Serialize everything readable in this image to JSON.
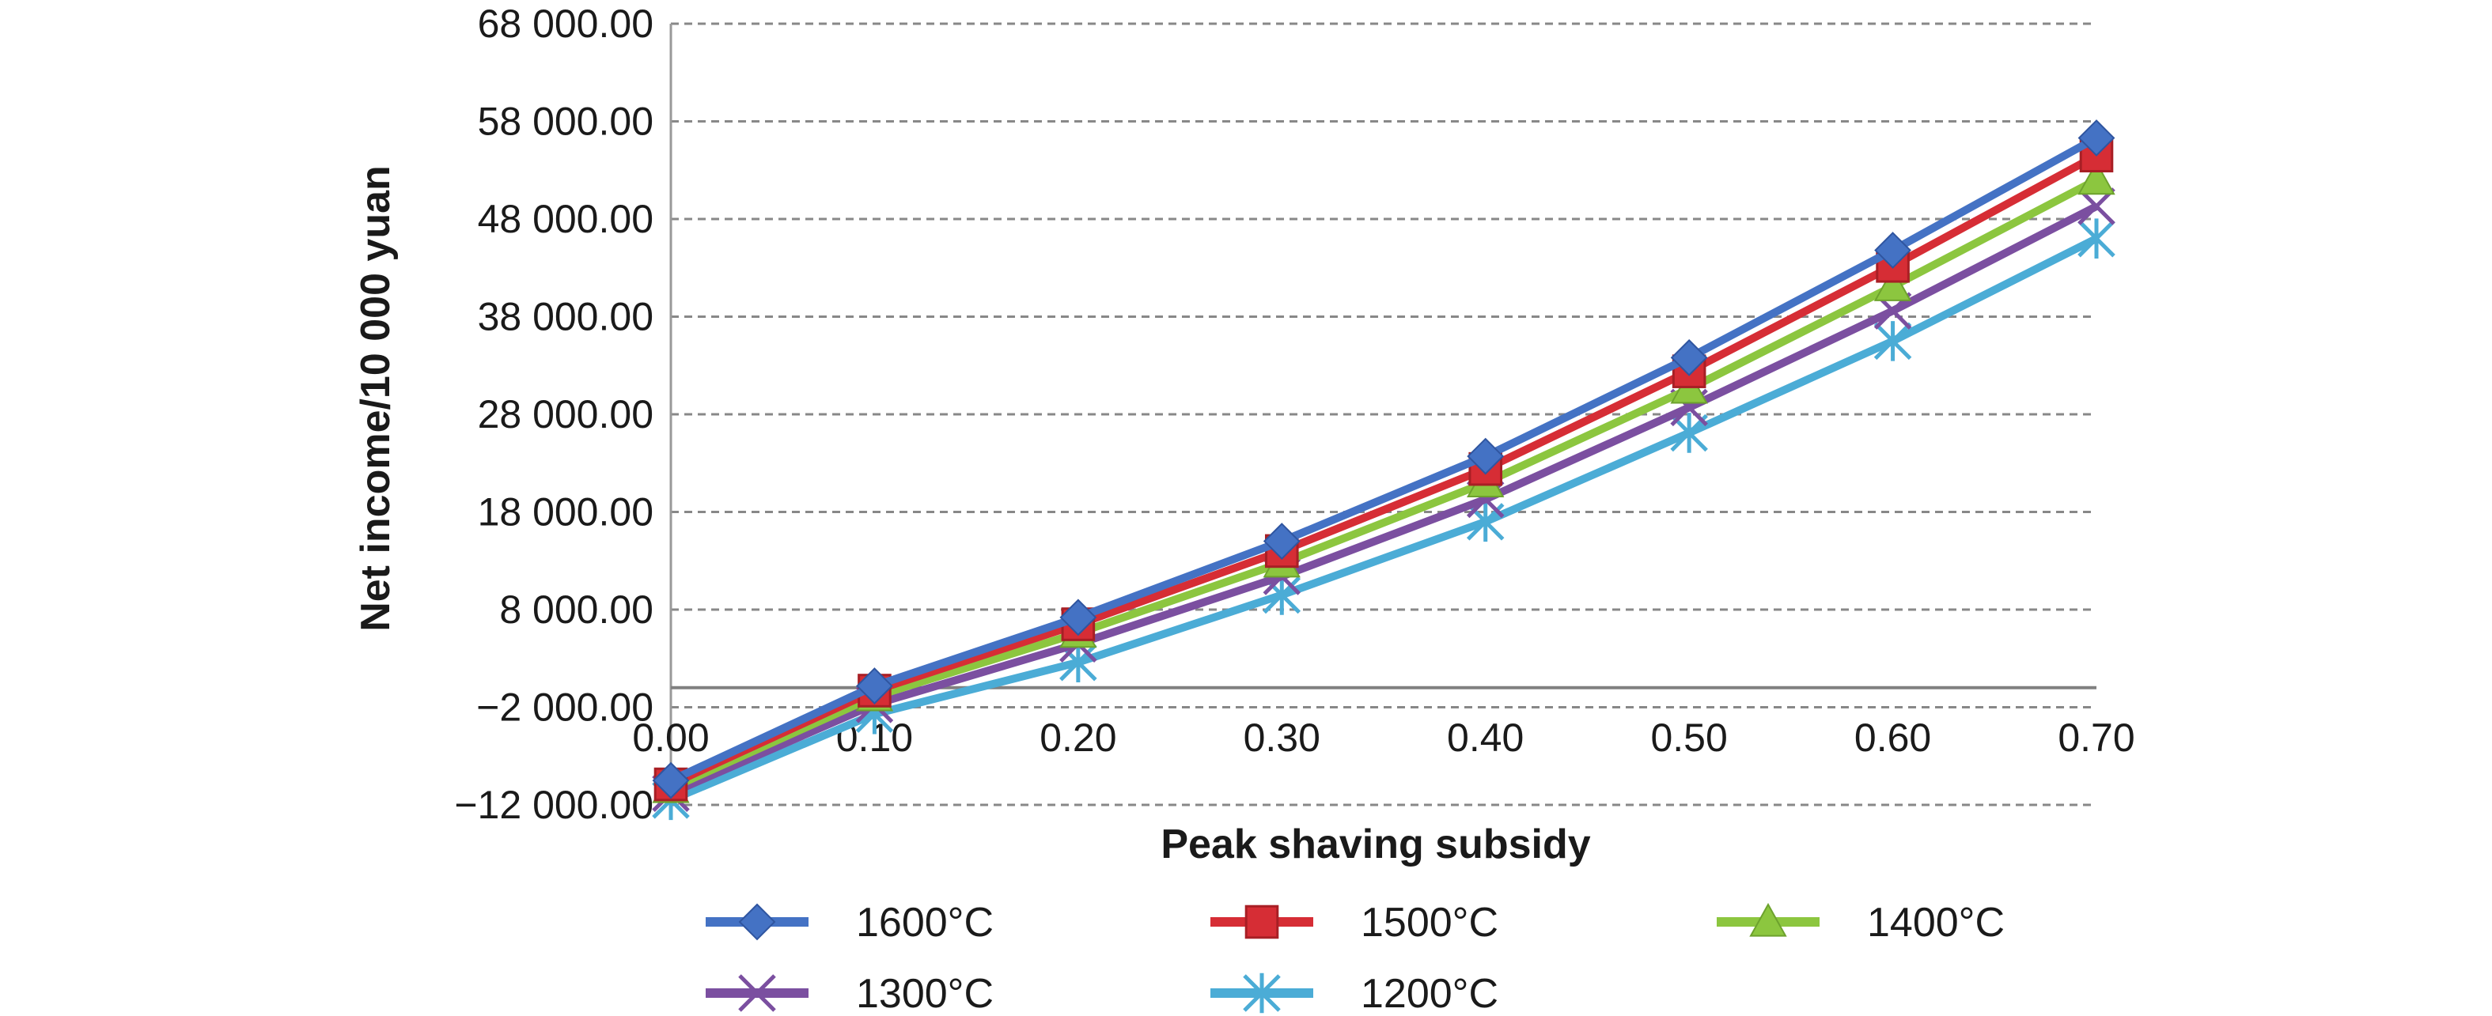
{
  "chart_data": {
    "type": "line",
    "title": "",
    "xlabel": "Peak shaving subsidy",
    "ylabel": "Net income/10 000 yuan",
    "x": [
      0.0,
      0.1,
      0.2,
      0.3,
      0.4,
      0.5,
      0.6,
      0.7
    ],
    "x_tick_labels": [
      "0.00",
      "0.10",
      "0.20",
      "0.30",
      "0.40",
      "0.50",
      "0.60",
      "0.70"
    ],
    "xlim": [
      0.0,
      0.7
    ],
    "ylim": [
      -12000,
      68000
    ],
    "y_ticks": [
      -12000,
      -2000,
      8000,
      18000,
      28000,
      38000,
      48000,
      58000,
      68000
    ],
    "y_tick_labels": [
      "−12 000.00",
      "−2 000.00",
      "8 000.00",
      "18 000.00",
      "28 000.00",
      "38 000.00",
      "48 000.00",
      "58 000.00",
      "68 000.00"
    ],
    "zero_line": 0,
    "grid": true,
    "legend_position": "bottom",
    "series": [
      {
        "name": "1600°C",
        "color": "#4472c4",
        "marker": "diamond",
        "values": [
          -9500,
          180,
          7200,
          15000,
          23700,
          33800,
          44800,
          56300
        ]
      },
      {
        "name": "1500°C",
        "color": "#d62d35",
        "marker": "square",
        "values": [
          -9900,
          -300,
          6500,
          14000,
          22400,
          32400,
          43200,
          54500
        ]
      },
      {
        "name": "1400°C",
        "color": "#8cc63f",
        "marker": "triangle",
        "values": [
          -10300,
          -900,
          5600,
          12800,
          21000,
          30600,
          41100,
          52000
        ]
      },
      {
        "name": "1300°C",
        "color": "#7b4fa0",
        "marker": "x",
        "values": [
          -10800,
          -1700,
          4500,
          11400,
          19300,
          28700,
          38600,
          49300
        ]
      },
      {
        "name": "1200°C",
        "color": "#4bacd6",
        "marker": "asterisk",
        "values": [
          -11500,
          -2700,
          2600,
          9500,
          17000,
          26100,
          35500,
          46000
        ]
      }
    ]
  }
}
